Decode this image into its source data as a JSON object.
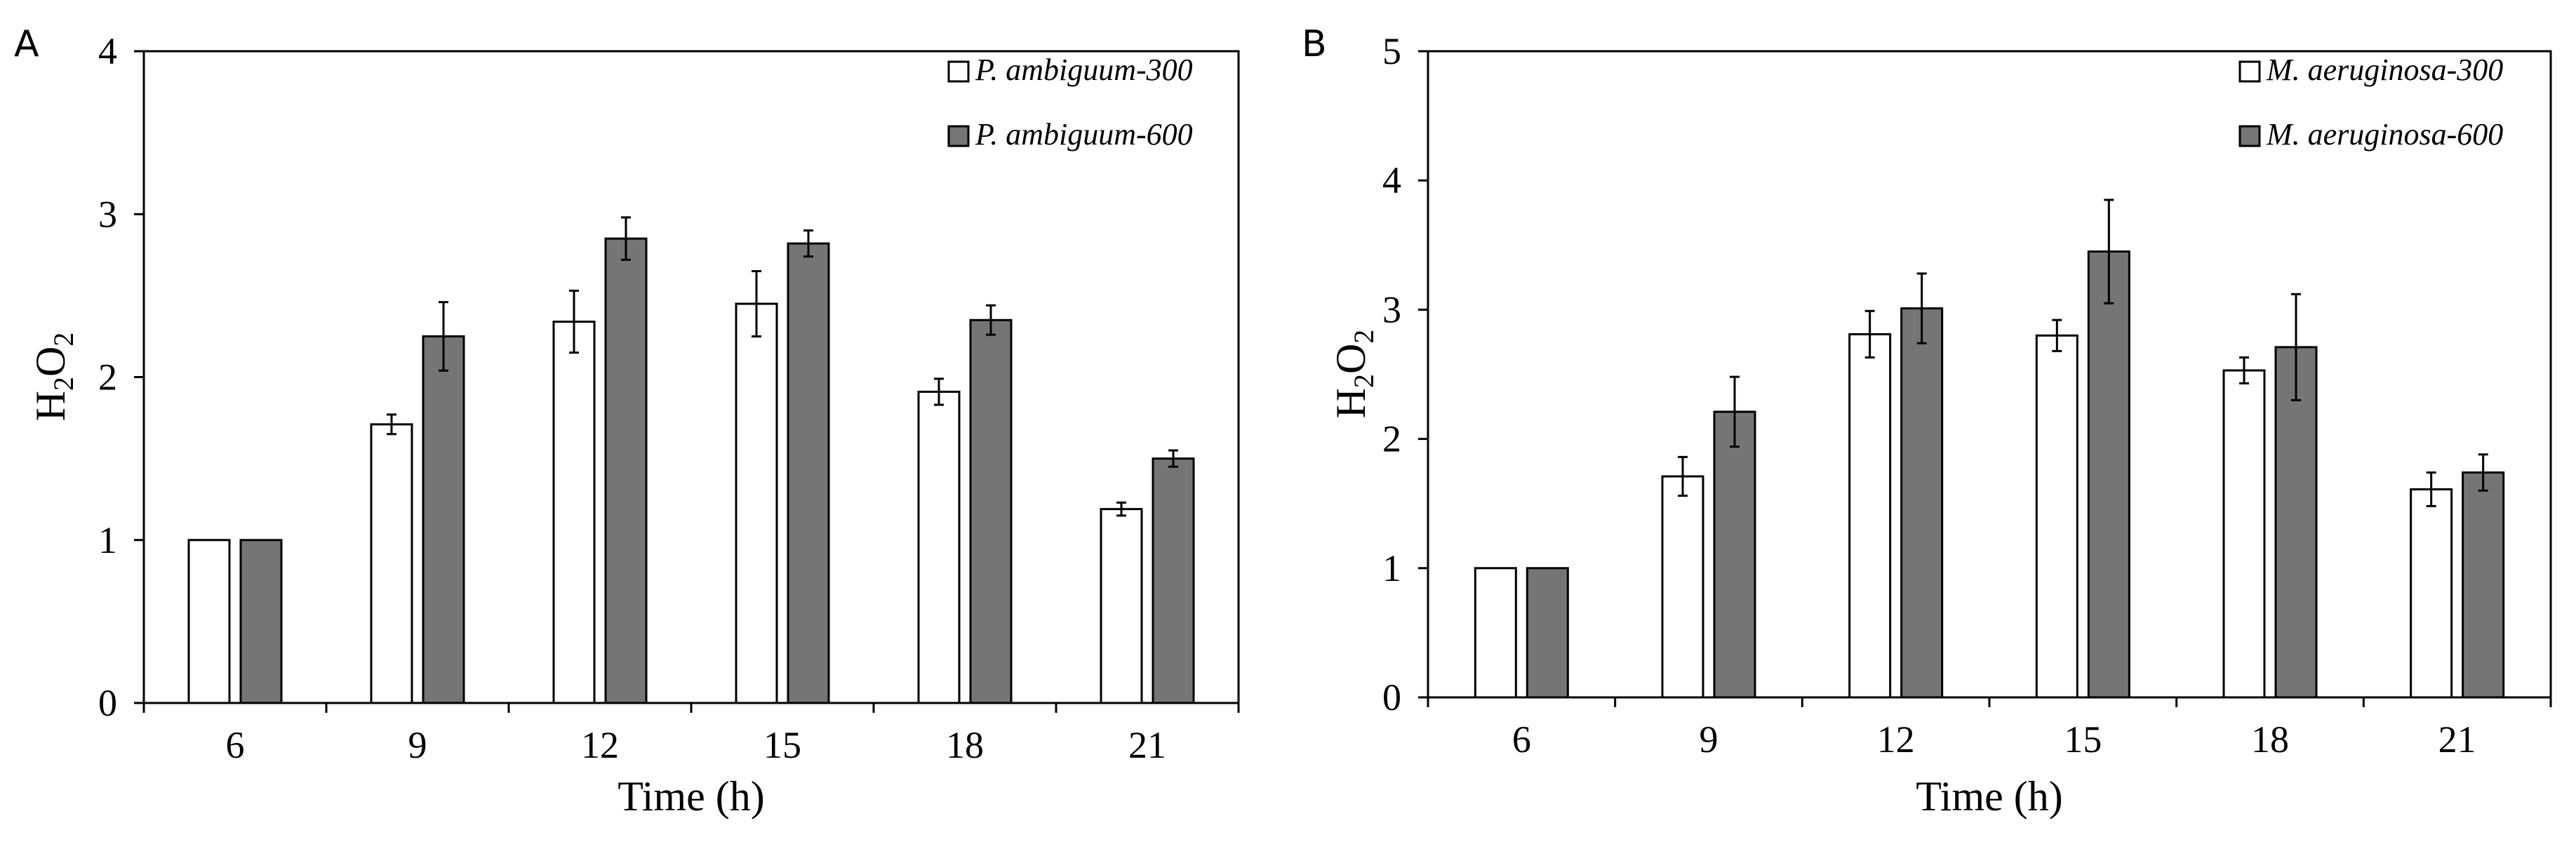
{
  "chart_data": [
    {
      "panel": "A",
      "type": "bar",
      "title": "",
      "xlabel": "Time (h)",
      "ylabel_main": "H",
      "ylabel_sub1": "2",
      "ylabel_mid": "O",
      "ylabel_sub2": "2",
      "ylim": [
        0,
        4
      ],
      "yticks": [
        "0",
        "1",
        "2",
        "3",
        "4"
      ],
      "categories": [
        "6",
        "9",
        "12",
        "15",
        "18",
        "21"
      ],
      "legend_position": "top-right",
      "colors": {
        "fill_1": "#ffffff",
        "fill_2": "#777474"
      },
      "series": [
        {
          "name": "P. ambiguum-300",
          "values": [
            1.0,
            1.71,
            2.34,
            2.45,
            1.91,
            1.19
          ],
          "errors": [
            0,
            0.06,
            0.19,
            0.2,
            0.08,
            0.04
          ]
        },
        {
          "name": "P. ambiguum-600",
          "values": [
            1.0,
            2.25,
            2.85,
            2.82,
            2.35,
            1.5
          ],
          "errors": [
            0,
            0.21,
            0.13,
            0.08,
            0.09,
            0.05
          ]
        }
      ]
    },
    {
      "panel": "B",
      "type": "bar",
      "title": "",
      "xlabel": "Time (h)",
      "ylabel_main": "H",
      "ylabel_sub1": "2",
      "ylabel_mid": "O",
      "ylabel_sub2": "2",
      "ylim": [
        0,
        5
      ],
      "yticks": [
        "0",
        "1",
        "2",
        "3",
        "4",
        "5"
      ],
      "categories": [
        "6",
        "9",
        "12",
        "15",
        "18",
        "21"
      ],
      "legend_position": "top-right",
      "colors": {
        "fill_1": "#ffffff",
        "fill_2": "#777474"
      },
      "series": [
        {
          "name": "M. aeruginosa-300",
          "values": [
            1.0,
            1.71,
            2.81,
            2.8,
            2.53,
            1.61
          ],
          "errors": [
            0,
            0.15,
            0.18,
            0.12,
            0.1,
            0.13
          ]
        },
        {
          "name": "M. aeruginosa-600",
          "values": [
            1.0,
            2.21,
            3.01,
            3.45,
            2.71,
            1.74
          ],
          "errors": [
            0,
            0.27,
            0.27,
            0.4,
            0.41,
            0.14
          ]
        }
      ]
    }
  ]
}
